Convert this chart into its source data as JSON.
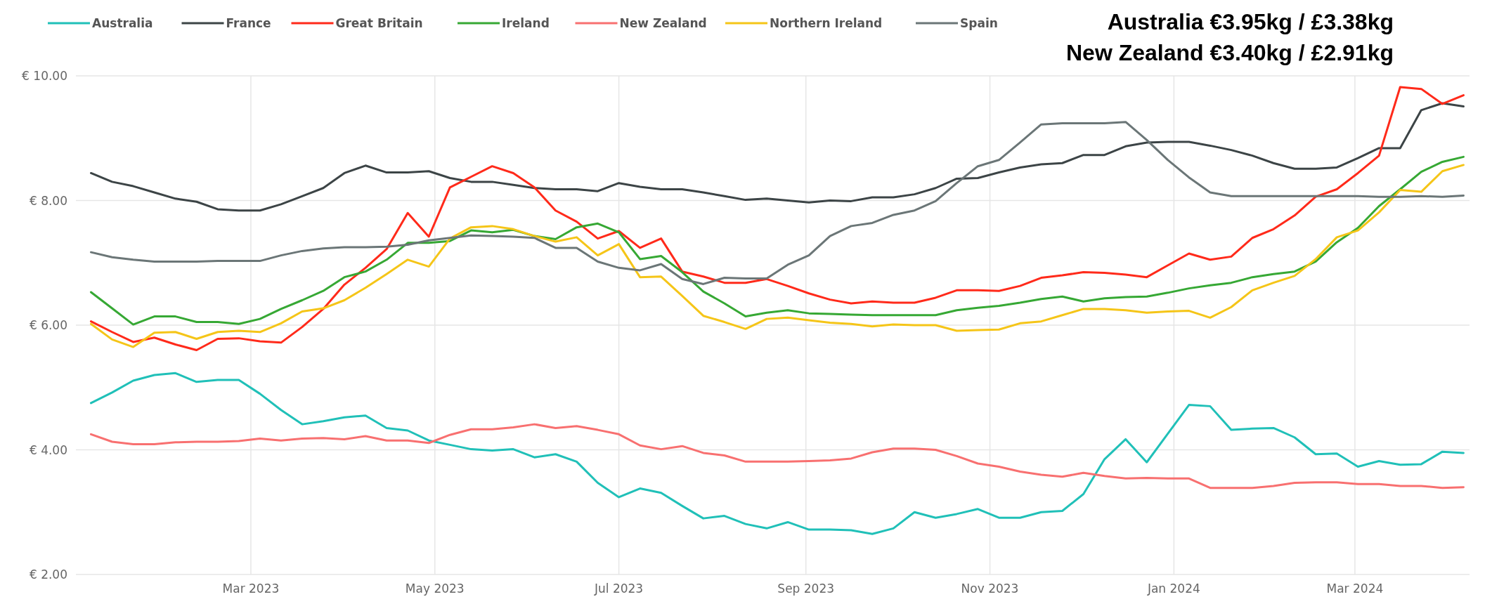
{
  "chart_data": {
    "type": "line",
    "annotations": [
      "Australia €3.95kg / £3.38kg",
      "New Zealand €3.40kg / £2.91kg"
    ],
    "x": [
      "2023-01-07",
      "2023-01-14",
      "2023-01-21",
      "2023-01-28",
      "2023-02-04",
      "2023-02-11",
      "2023-02-18",
      "2023-02-25",
      "2023-03-04",
      "2023-03-11",
      "2023-03-18",
      "2023-03-25",
      "2023-04-01",
      "2023-04-08",
      "2023-04-15",
      "2023-04-22",
      "2023-04-29",
      "2023-05-06",
      "2023-05-13",
      "2023-05-20",
      "2023-05-27",
      "2023-06-03",
      "2023-06-10",
      "2023-06-17",
      "2023-06-24",
      "2023-07-01",
      "2023-07-08",
      "2023-07-15",
      "2023-07-22",
      "2023-07-29",
      "2023-08-05",
      "2023-08-12",
      "2023-08-19",
      "2023-08-26",
      "2023-09-02",
      "2023-09-09",
      "2023-09-16",
      "2023-09-23",
      "2023-09-30",
      "2023-10-07",
      "2023-10-14",
      "2023-10-21",
      "2023-10-28",
      "2023-11-04",
      "2023-11-11",
      "2023-11-18",
      "2023-11-25",
      "2023-12-02",
      "2023-12-09",
      "2023-12-16",
      "2023-12-23",
      "2023-12-30",
      "2024-01-06",
      "2024-01-13",
      "2024-01-20",
      "2024-01-27",
      "2024-02-03",
      "2024-02-10",
      "2024-02-17",
      "2024-02-24",
      "2024-03-02",
      "2024-03-09",
      "2024-03-16",
      "2024-03-23",
      "2024-03-30",
      "2024-04-06"
    ],
    "series": [
      {
        "name": "Australia",
        "color": "#20c0b8",
        "values": [
          4.75,
          4.92,
          5.11,
          5.2,
          5.23,
          5.09,
          5.12,
          5.12,
          4.9,
          4.64,
          4.41,
          4.46,
          4.52,
          4.55,
          4.35,
          4.31,
          4.15,
          4.08,
          4.01,
          3.99,
          4.01,
          3.88,
          3.93,
          3.81,
          3.47,
          3.24,
          3.38,
          3.31,
          3.1,
          2.9,
          2.94,
          2.81,
          2.74,
          2.84,
          2.72,
          2.72,
          2.71,
          2.65,
          2.74,
          3.0,
          2.91,
          2.97,
          3.05,
          2.91,
          2.91,
          3.0,
          3.02,
          3.29,
          3.85,
          4.17,
          3.8,
          4.26,
          4.72,
          4.7,
          4.32,
          4.34,
          4.35,
          4.2,
          3.93,
          3.94,
          3.73,
          3.82,
          3.76,
          3.77,
          3.97,
          3.95
        ]
      },
      {
        "name": "France",
        "color": "#3c4446",
        "values": [
          8.44,
          8.3,
          8.23,
          8.13,
          8.03,
          7.98,
          7.86,
          7.84,
          7.84,
          7.94,
          8.07,
          8.2,
          8.44,
          8.56,
          8.45,
          8.45,
          8.47,
          8.36,
          8.3,
          8.3,
          8.25,
          8.2,
          8.18,
          8.18,
          8.15,
          8.28,
          8.22,
          8.18,
          8.18,
          8.13,
          8.07,
          8.01,
          8.03,
          8.0,
          7.97,
          8.0,
          7.99,
          8.05,
          8.05,
          8.1,
          8.2,
          8.35,
          8.36,
          8.45,
          8.53,
          8.58,
          8.6,
          8.73,
          8.73,
          8.87,
          8.93,
          8.94,
          8.94,
          8.88,
          8.81,
          8.72,
          8.6,
          8.51,
          8.51,
          8.53,
          8.68,
          8.84,
          8.84,
          9.45,
          9.56,
          9.51
        ]
      },
      {
        "name": "Great Britain",
        "color": "#ff2a1a",
        "values": [
          6.06,
          5.89,
          5.73,
          5.8,
          5.69,
          5.6,
          5.78,
          5.79,
          5.74,
          5.72,
          5.97,
          6.26,
          6.65,
          6.92,
          7.22,
          7.8,
          7.42,
          8.21,
          8.38,
          8.55,
          8.44,
          8.21,
          7.84,
          7.66,
          7.39,
          7.51,
          7.24,
          7.39,
          6.86,
          6.78,
          6.68,
          6.68,
          6.74,
          6.63,
          6.51,
          6.41,
          6.35,
          6.38,
          6.36,
          6.36,
          6.44,
          6.56,
          6.56,
          6.55,
          6.63,
          6.76,
          6.8,
          6.85,
          6.84,
          6.81,
          6.77,
          6.96,
          7.15,
          7.05,
          7.1,
          7.4,
          7.54,
          7.76,
          8.06,
          8.18,
          8.44,
          8.72,
          9.82,
          9.79,
          9.55,
          9.69
        ]
      },
      {
        "name": "Ireland",
        "color": "#36a834",
        "values": [
          6.53,
          6.27,
          6.01,
          6.14,
          6.14,
          6.05,
          6.05,
          6.02,
          6.1,
          6.26,
          6.4,
          6.55,
          6.77,
          6.86,
          7.05,
          7.32,
          7.32,
          7.35,
          7.52,
          7.49,
          7.53,
          7.43,
          7.38,
          7.57,
          7.63,
          7.49,
          7.06,
          7.11,
          6.85,
          6.54,
          6.35,
          6.14,
          6.2,
          6.24,
          6.19,
          6.18,
          6.17,
          6.16,
          6.16,
          6.16,
          6.16,
          6.24,
          6.28,
          6.31,
          6.36,
          6.42,
          6.46,
          6.38,
          6.43,
          6.45,
          6.46,
          6.52,
          6.59,
          6.64,
          6.68,
          6.77,
          6.82,
          6.86,
          7.02,
          7.33,
          7.56,
          7.91,
          8.18,
          8.46,
          8.62,
          8.7
        ]
      },
      {
        "name": "New Zealand",
        "color": "#f87070",
        "values": [
          4.25,
          4.13,
          4.09,
          4.09,
          4.12,
          4.13,
          4.13,
          4.14,
          4.18,
          4.15,
          4.18,
          4.19,
          4.17,
          4.22,
          4.15,
          4.15,
          4.11,
          4.24,
          4.33,
          4.33,
          4.36,
          4.41,
          4.35,
          4.38,
          4.32,
          4.25,
          4.07,
          4.01,
          4.06,
          3.95,
          3.91,
          3.81,
          3.81,
          3.81,
          3.82,
          3.83,
          3.86,
          3.96,
          4.02,
          4.02,
          4.0,
          3.9,
          3.78,
          3.73,
          3.65,
          3.6,
          3.57,
          3.63,
          3.58,
          3.54,
          3.55,
          3.54,
          3.54,
          3.39,
          3.39,
          3.39,
          3.42,
          3.47,
          3.48,
          3.48,
          3.45,
          3.45,
          3.42,
          3.42,
          3.39,
          3.4
        ]
      },
      {
        "name": "Northern Ireland",
        "color": "#f5c518",
        "values": [
          6.02,
          5.77,
          5.65,
          5.88,
          5.89,
          5.78,
          5.89,
          5.91,
          5.89,
          6.03,
          6.22,
          6.27,
          6.4,
          6.6,
          6.82,
          7.05,
          6.94,
          7.39,
          7.57,
          7.59,
          7.54,
          7.43,
          7.34,
          7.41,
          7.12,
          7.3,
          6.77,
          6.78,
          6.47,
          6.15,
          6.05,
          5.94,
          6.1,
          6.12,
          6.08,
          6.04,
          6.02,
          5.98,
          6.01,
          6.0,
          6.0,
          5.91,
          5.92,
          5.93,
          6.03,
          6.06,
          6.16,
          6.26,
          6.26,
          6.24,
          6.2,
          6.22,
          6.23,
          6.12,
          6.29,
          6.56,
          6.68,
          6.79,
          7.06,
          7.41,
          7.52,
          7.81,
          8.17,
          8.14,
          8.47,
          8.57
        ]
      },
      {
        "name": "Spain",
        "color": "#6b7677",
        "values": [
          7.17,
          7.09,
          7.05,
          7.02,
          7.02,
          7.02,
          7.03,
          7.03,
          7.03,
          7.12,
          7.19,
          7.23,
          7.25,
          7.25,
          7.26,
          7.29,
          7.36,
          7.4,
          7.44,
          7.43,
          7.42,
          7.4,
          7.24,
          7.24,
          7.02,
          6.92,
          6.88,
          6.98,
          6.74,
          6.66,
          6.76,
          6.75,
          6.75,
          6.97,
          7.12,
          7.43,
          7.59,
          7.64,
          7.77,
          7.84,
          7.99,
          8.28,
          8.55,
          8.65,
          8.93,
          9.22,
          9.24,
          9.24,
          9.24,
          9.26,
          8.97,
          8.65,
          8.37,
          8.13,
          8.07,
          8.07,
          8.07,
          8.07,
          8.07,
          8.07,
          8.07,
          8.06,
          8.06,
          8.07,
          8.06,
          8.08
        ]
      }
    ],
    "xlim": [
      "2023-01-02",
      "2024-04-08"
    ],
    "xticks": [
      {
        "value": "2023-03-01",
        "label": "Mar 2023"
      },
      {
        "value": "2023-05-01",
        "label": "May 2023"
      },
      {
        "value": "2023-07-01",
        "label": "Jul 2023"
      },
      {
        "value": "2023-09-01",
        "label": "Sep 2023"
      },
      {
        "value": "2023-11-01",
        "label": "Nov 2023"
      },
      {
        "value": "2024-01-01",
        "label": "Jan 2024"
      },
      {
        "value": "2024-03-01",
        "label": "Mar 2024"
      }
    ],
    "ylim": [
      2,
      10
    ],
    "yticks": [
      {
        "value": 2,
        "label": "€ 2.00"
      },
      {
        "value": 4,
        "label": "€ 4.00"
      },
      {
        "value": 6,
        "label": "€ 6.00"
      },
      {
        "value": 8,
        "label": "€ 8.00"
      },
      {
        "value": 10,
        "label": "€ 10.00"
      }
    ],
    "grid": true,
    "legend": "top left"
  }
}
